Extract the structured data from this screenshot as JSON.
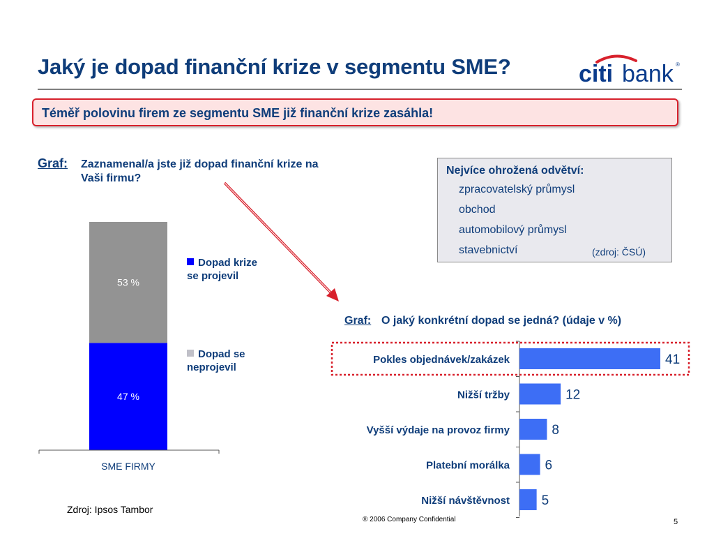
{
  "title": "Jaký je dopad finanční krize v segmentu SME?",
  "logo_text": "citibank",
  "banner": "Téměř polovinu firem ze segmentu SME již finanční krize zasáhla!",
  "left_chart": {
    "graf_label": "Graf:",
    "question": "Zaznamenal/a jste již dopad finanční krize na Vaši firmu?",
    "legend": [
      {
        "label": "Dopad krize se projevil",
        "color": "#0000ff"
      },
      {
        "label": "Dopad se neprojevil",
        "color": "#c0c0c8"
      }
    ],
    "source": "Zdroj: Ipsos Tambor"
  },
  "industry_box": {
    "heading": "Nejvíce ohrožená odvětví:",
    "items": [
      "zpracovatelský průmysl",
      "obchod",
      "automobilový průmysl",
      "stavebnictví"
    ],
    "source": "(zdroj: ČSÚ)"
  },
  "right_chart": {
    "graf_label": "Graf:",
    "question": "O jaký konkrétní dopad se jedná? (údaje v %)"
  },
  "chart_data": [
    {
      "type": "bar",
      "stacked": true,
      "categories": [
        "SME FIRMY"
      ],
      "series": [
        {
          "name": "Dopad krize se projevil",
          "values": [
            47
          ],
          "label": "47 %",
          "color": "#0000ff"
        },
        {
          "name": "Dopad se neprojevil",
          "values": [
            53
          ],
          "label": "53 %",
          "color": "#939393"
        }
      ],
      "ylim": [
        0,
        100
      ],
      "grid": false,
      "legend": "right"
    },
    {
      "type": "bar",
      "orientation": "horizontal",
      "categories": [
        "Pokles objednávek/zakázek",
        "Nižší tržby",
        "Vyšší výdaje na provoz firmy",
        "Platební morálka",
        "Nižší návštěvnost"
      ],
      "values": [
        41,
        12,
        8,
        6,
        5
      ],
      "highlight_category": "Pokles objednávek/zakázek",
      "bar_color": "#3d6ef5",
      "grid": false
    }
  ],
  "footer": "® 2006 Company Confidential",
  "page_number": "5"
}
